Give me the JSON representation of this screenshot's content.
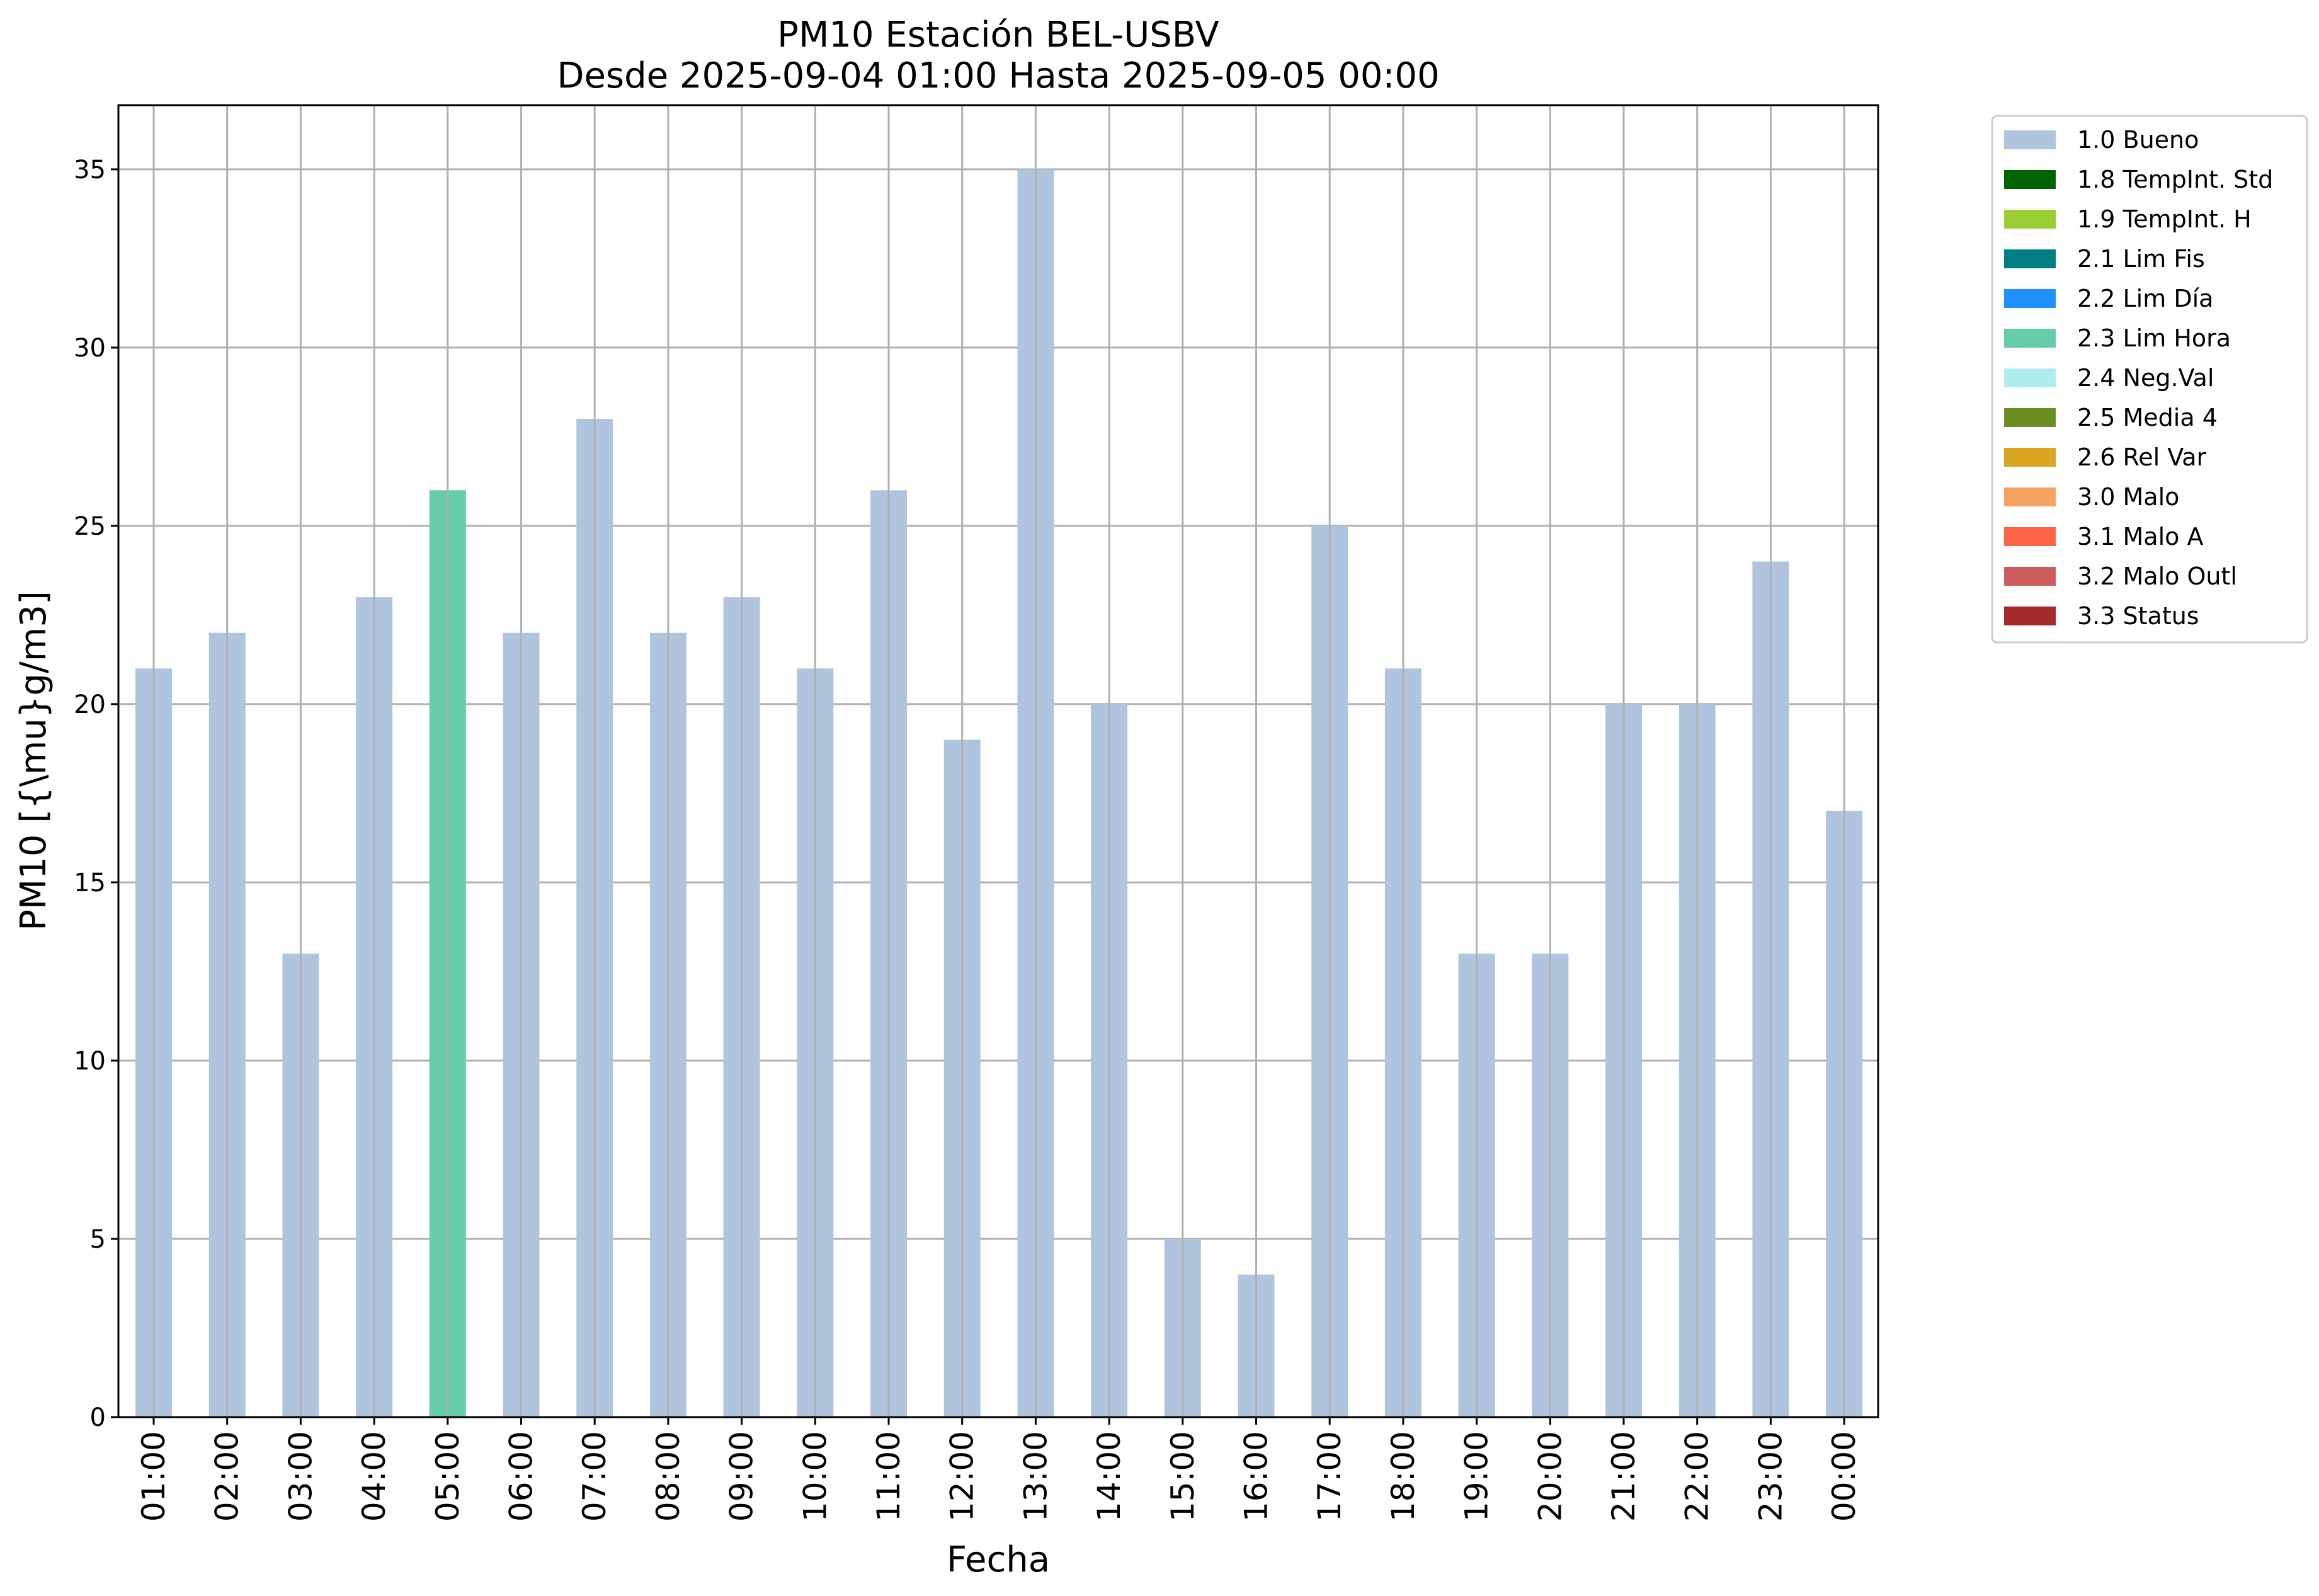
{
  "chart_data": {
    "type": "bar",
    "title_line1": "PM10 Estación BEL-USBV",
    "title_line2": "Desde 2025-09-04 01:00 Hasta 2025-09-05 00:00",
    "xlabel": "Fecha",
    "ylabel": "PM10 [{\\mu}g/m3]",
    "ylim": [
      0,
      36.8
    ],
    "yticks": [
      0,
      5,
      10,
      15,
      20,
      25,
      30,
      35
    ],
    "grid": true,
    "legend_position": "outside-right-top",
    "categories": [
      "01:00",
      "02:00",
      "03:00",
      "04:00",
      "05:00",
      "06:00",
      "07:00",
      "08:00",
      "09:00",
      "10:00",
      "11:00",
      "12:00",
      "13:00",
      "14:00",
      "15:00",
      "16:00",
      "17:00",
      "18:00",
      "19:00",
      "20:00",
      "21:00",
      "22:00",
      "23:00",
      "00:00"
    ],
    "values": [
      21,
      22,
      13,
      23,
      26,
      22,
      28,
      22,
      23,
      21,
      26,
      19,
      35,
      20,
      5,
      4,
      25,
      21,
      13,
      13,
      20,
      20,
      24,
      17
    ],
    "flags": [
      "1.0 Bueno",
      "1.0 Bueno",
      "1.0 Bueno",
      "1.0 Bueno",
      "2.3 Lim Hora",
      "1.0 Bueno",
      "1.0 Bueno",
      "1.0 Bueno",
      "1.0 Bueno",
      "1.0 Bueno",
      "1.0 Bueno",
      "1.0 Bueno",
      "1.0 Bueno",
      "1.0 Bueno",
      "1.0 Bueno",
      "1.0 Bueno",
      "1.0 Bueno",
      "1.0 Bueno",
      "1.0 Bueno",
      "1.0 Bueno",
      "1.0 Bueno",
      "1.0 Bueno",
      "1.0 Bueno",
      "1.0 Bueno"
    ],
    "legend": [
      {
        "label": "1.0 Bueno",
        "color": "#b0c4de"
      },
      {
        "label": "1.8 TempInt. Std",
        "color": "#006400"
      },
      {
        "label": "1.9 TempInt. H",
        "color": "#9acd32"
      },
      {
        "label": "2.1 Lim Fis",
        "color": "#008080"
      },
      {
        "label": "2.2 Lim Día",
        "color": "#1e90ff"
      },
      {
        "label": "2.3 Lim Hora",
        "color": "#66cdaa"
      },
      {
        "label": "2.4 Neg.Val",
        "color": "#afeeee"
      },
      {
        "label": "2.5 Media 4",
        "color": "#6b8e23"
      },
      {
        "label": "2.6 Rel Var",
        "color": "#daa520"
      },
      {
        "label": "3.0 Malo",
        "color": "#f4a460"
      },
      {
        "label": "3.1 Malo A",
        "color": "#ff6347"
      },
      {
        "label": "3.2 Malo Outl",
        "color": "#cd5c5c"
      },
      {
        "label": "3.3 Status",
        "color": "#a52a2a"
      }
    ]
  }
}
